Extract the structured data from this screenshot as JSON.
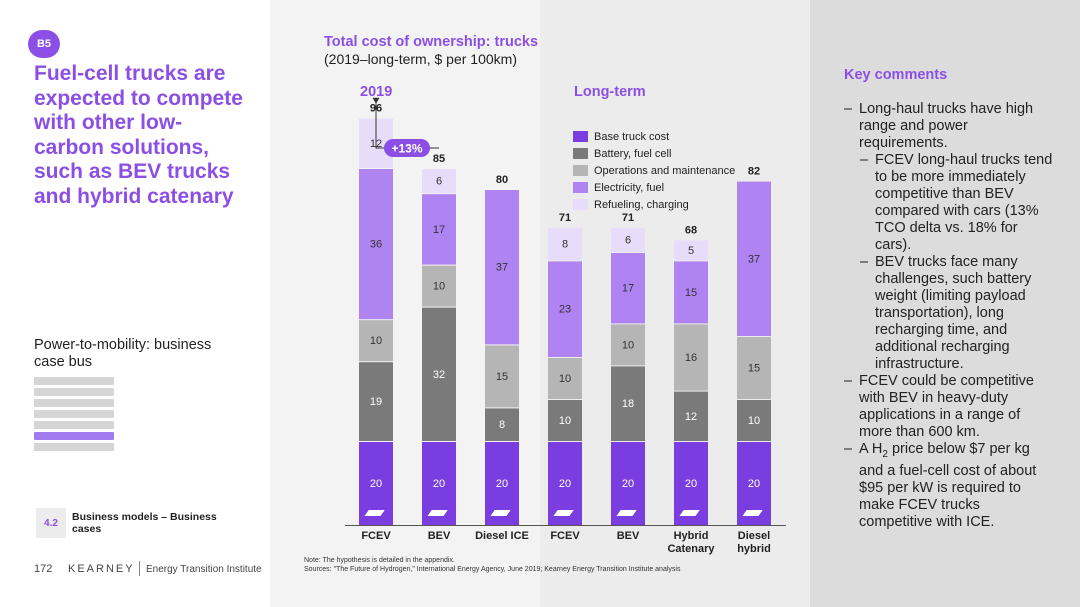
{
  "page": {
    "badge": "B5",
    "headline": "Fuel-cell trucks are expected to compete with other low-carbon solutions, such as BEV trucks and hybrid catenary",
    "section_label": "Power-to-mobility: business case bus",
    "section_number": "4.2",
    "section_title": "Business models – Business cases",
    "page_number": "172",
    "logo": "KEARNEY",
    "institute": "Energy Transition Institute"
  },
  "chart_header": {
    "title": "Total cost of ownership: trucks",
    "subtitle": "(2019–long-term, $ per 100km)",
    "group_left": "2019",
    "group_right": "Long-term"
  },
  "notes": {
    "note": "Note: The hypothesis is detailed in the appendix.",
    "sources": "Sources: \"The Future of Hydrogen,\" International Energy Agency, June 2019; Kearney Energy Transition Institute analysis"
  },
  "key_comments": {
    "title": "Key comments",
    "items": [
      "Long-haul trucks have high range and power requirements.",
      "FCEV long-haul trucks tend to be more immediately competitive than BEV compared with cars (13% TCO delta vs. 18% for cars).",
      "BEV trucks face many challenges, such battery weight (limiting payload transportation), long recharging time, and additional recharging infrastructure.",
      "FCEV could be competitive with BEV in heavy-duty applications in a range of more than 600 km.",
      "A H",
      "2",
      " price below $7 per kg and a fuel-cell cost of about $95 per kW is required to make FCEV trucks competitive with ICE."
    ]
  },
  "chart_data": {
    "type": "bar",
    "stacked": true,
    "title": "Total cost of ownership: trucks",
    "subtitle": "(2019–long-term, $ per 100km)",
    "groups": [
      "2019",
      "Long-term"
    ],
    "categories": [
      "FCEV",
      "BEV",
      "Diesel ICE",
      "FCEV",
      "BEV",
      "Hybrid Catenary",
      "Diesel hybrid"
    ],
    "category_lines": [
      [
        "FCEV"
      ],
      [
        "BEV"
      ],
      [
        "Diesel ICE"
      ],
      [
        "FCEV"
      ],
      [
        "BEV"
      ],
      [
        "Hybrid",
        "Catenary"
      ],
      [
        "Diesel",
        "hybrid"
      ]
    ],
    "series": [
      {
        "name": "Base truck cost",
        "color": "#7a3ee0",
        "values": [
          20,
          20,
          20,
          20,
          20,
          20,
          20
        ]
      },
      {
        "name": "Battery, fuel cell",
        "color": "#7a7a7a",
        "values": [
          19,
          32,
          8,
          10,
          18,
          12,
          10
        ]
      },
      {
        "name": "Operations and maintenance",
        "color": "#b5b5b5",
        "values": [
          10,
          10,
          15,
          10,
          10,
          16,
          15
        ]
      },
      {
        "name": "Electricity, fuel",
        "color": "#b083f2",
        "values": [
          36,
          17,
          37,
          23,
          17,
          15,
          37
        ]
      },
      {
        "name": "Refueling, charging",
        "color": "#e8dcfb",
        "values": [
          12,
          6,
          0,
          8,
          6,
          5,
          0
        ]
      }
    ],
    "totals": [
      96,
      85,
      80,
      71,
      71,
      68,
      82
    ],
    "annotation": "+13%",
    "axis_break": true
  }
}
